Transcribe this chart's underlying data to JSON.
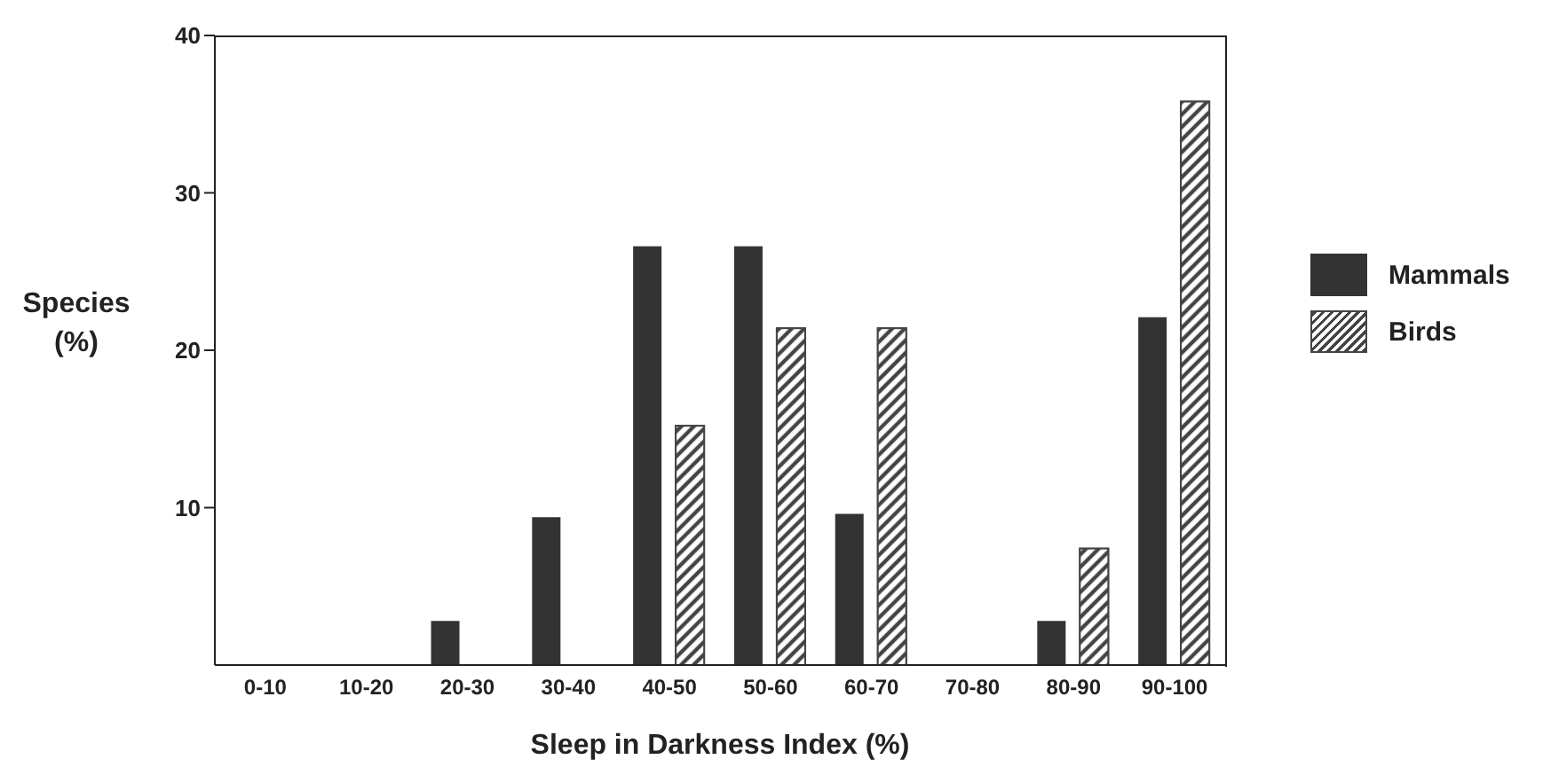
{
  "chart_data": {
    "type": "bar",
    "xlabel": "Sleep in Darkness Index (%)",
    "ylabel": "Species (%)",
    "categories": [
      "0-10",
      "10-20",
      "20-30",
      "30-40",
      "40-50",
      "50-60",
      "60-70",
      "70-80",
      "80-90",
      "90-100"
    ],
    "series": [
      {
        "name": "Mammals",
        "color": "#333333",
        "values": [
          0,
          0,
          2.8,
          9.4,
          26.6,
          26.6,
          9.6,
          0,
          2.8,
          22.1
        ]
      },
      {
        "name": "Birds",
        "color": "#444444",
        "values": [
          0,
          0,
          0,
          0,
          15.2,
          21.4,
          21.4,
          0,
          7.4,
          35.8
        ]
      }
    ],
    "ylim": [
      0,
      40
    ],
    "yticks": [
      10,
      20,
      30,
      40
    ],
    "legend": "right",
    "grid": false
  }
}
